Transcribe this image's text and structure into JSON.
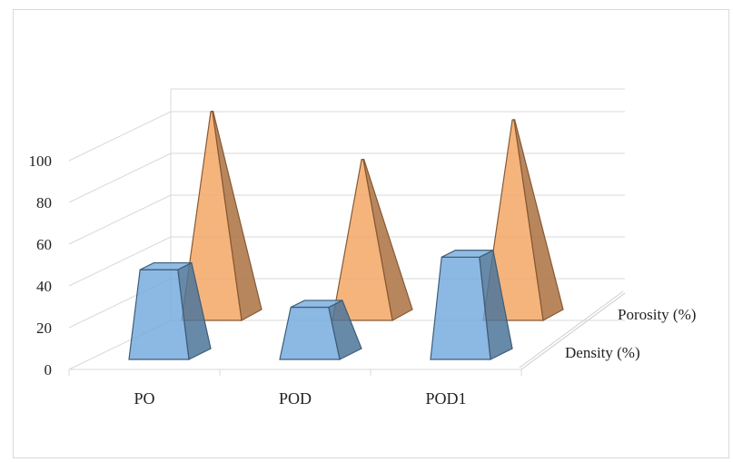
{
  "chart_data": {
    "type": "3d-pyramid-bar",
    "categories": [
      "PO",
      "POD",
      "POD1"
    ],
    "series": [
      {
        "name": "Density (%)",
        "values": [
          43,
          25,
          49
        ],
        "color": "#6fa8dc"
      },
      {
        "name": "Porosity (%)",
        "values": [
          100,
          77,
          96
        ],
        "color": "#f4a15d"
      }
    ],
    "ylim": [
      0,
      100
    ],
    "yticks": [
      "0",
      "20",
      "40",
      "60",
      "80",
      "100"
    ],
    "grid": true,
    "legend_position": "right-depth-axis"
  }
}
